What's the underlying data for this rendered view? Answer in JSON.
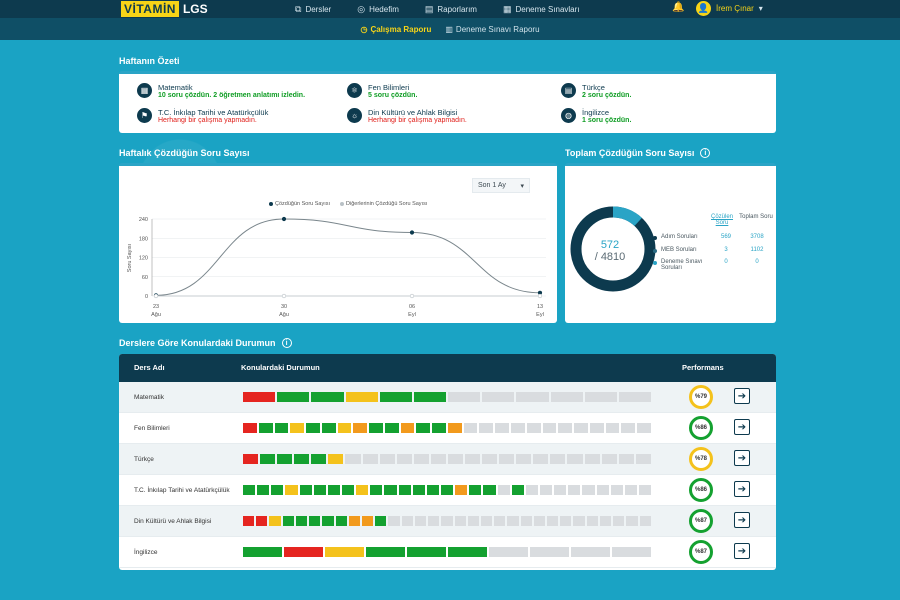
{
  "logo": {
    "main": "VİTAMİN",
    "suffix": "LGS"
  },
  "nav": [
    {
      "label": "Dersler",
      "icon": "layers-icon",
      "glyph": "⧉"
    },
    {
      "label": "Hedefim",
      "icon": "target-icon",
      "glyph": "◎"
    },
    {
      "label": "Raporlarım",
      "icon": "report-icon",
      "glyph": "▤"
    },
    {
      "label": "Deneme Sınavları",
      "icon": "exam-icon",
      "glyph": "▦"
    }
  ],
  "user": {
    "name": "İrem Çınar"
  },
  "subnav": [
    {
      "label": "Çalışma Raporu",
      "active": true
    },
    {
      "label": "Deneme Sınavı Raporu",
      "active": false
    }
  ],
  "summary": {
    "title": "Haftanın Özeti",
    "items": [
      {
        "name": "Matematik",
        "status": "10 soru çözdün. 2 öğretmen anlatımı izledin.",
        "ok": true,
        "glyph": "▦"
      },
      {
        "name": "T.C. İnkılap Tarihi ve Atatürkçülük",
        "status": "Herhangi bir çalışma yapmadın.",
        "ok": false,
        "glyph": "⚑"
      },
      {
        "name": "Fen Bilimleri",
        "status": "5 soru çözdün.",
        "ok": true,
        "glyph": "⚛"
      },
      {
        "name": "Din Kültürü ve Ahlak Bilgisi",
        "status": "Herhangi bir çalışma yapmadın.",
        "ok": false,
        "glyph": "☼"
      },
      {
        "name": "Türkçe",
        "status": "2 soru çözdün.",
        "ok": true,
        "glyph": "▤"
      },
      {
        "name": "İngilizce",
        "status": "1 soru çözdün.",
        "ok": true,
        "glyph": "◍"
      }
    ]
  },
  "weekly": {
    "title": "Haftalık Çözdüğün Soru Sayısı",
    "range": "Son 1 Ay",
    "legend": [
      "Çözdüğün Soru Sayısı",
      "Diğerlerinin Çözdüğü Soru Sayısı"
    ]
  },
  "chart_data": {
    "type": "line",
    "categories": [
      "23 Ağu",
      "30 Ağu",
      "06 Eyl",
      "13 Eyl"
    ],
    "tick_labels_top": [
      "23",
      "30",
      "06",
      "13"
    ],
    "tick_labels_bottom": [
      "Ağu",
      "Ağu",
      "Eyl",
      "Eyl"
    ],
    "series": [
      {
        "name": "Çözdüğün Soru Sayısı",
        "values": [
          2,
          240,
          198,
          10
        ],
        "color": "#7a868c"
      },
      {
        "name": "Diğerlerinin Çözdüğü Soru Sayısı",
        "values": [
          0,
          0,
          0,
          0
        ],
        "color": "#b9c1c6"
      }
    ],
    "ylabel": "Soru Sayısı",
    "ylim": [
      0,
      240
    ],
    "yticks": [
      0,
      60,
      120,
      180,
      240
    ],
    "grid": true,
    "legend": "top"
  },
  "total": {
    "title": "Toplam Çözdüğün Soru Sayısı",
    "solved": "572",
    "of": "/ 4810",
    "solved_fraction": 0.119,
    "col1": "Çözülen Soru",
    "col2": "Toplam Soru",
    "rows": [
      {
        "label": "Adım Soruları",
        "solved": "569",
        "total": "3708",
        "color": "#0d3a4e"
      },
      {
        "label": "MEB Soruları",
        "solved": "3",
        "total": "1102",
        "color": "#2a6b84"
      },
      {
        "label": "Deneme Sınavı Soruları",
        "solved": "0",
        "total": "0",
        "color": "#2aa4c6"
      }
    ]
  },
  "courses": {
    "title": "Derslere Göre Konulardaki Durumun",
    "col_name": "Ders Adı",
    "col_topics": "Konulardaki Durumun",
    "col_perf": "Performans",
    "colors": {
      "r": "#e52520",
      "g": "#14a130",
      "y": "#f4c21c",
      "o": "#f29a1d",
      "n": "#d9dcdf"
    },
    "rows": [
      {
        "name": "Matematik",
        "segments": "rggygg",
        "pad": "nnnnnn",
        "perf": "%79",
        "ring": "#f4c21c"
      },
      {
        "name": "Fen Bilimleri",
        "segments": "rggyggyoggoggo",
        "pad": "nnnnnnnnnnnn",
        "perf": "%86",
        "ring": "#14a130"
      },
      {
        "name": "Türkçe",
        "segments": "rggggy",
        "pad": "nnnnnnnnnnnnnnnnnn",
        "perf": "%78",
        "ring": "#f4c21c"
      },
      {
        "name": "T.C. İnkılap Tarihi ve Atatürkçülük",
        "segments": "gggyggggyggggggoggng",
        "pad": "nnnnnnnnn",
        "perf": "%86",
        "ring": "#14a130"
      },
      {
        "name": "Din Kültürü ve Ahlak Bilgisi",
        "segments": "rrygggggoog",
        "pad": "nnnnnnnnnnnnnnnnnnnn",
        "perf": "%87",
        "ring": "#14a130"
      },
      {
        "name": "İngilizce",
        "segments": "gryggg",
        "pad": "nnnn",
        "perf": "%87",
        "ring": "#14a130"
      }
    ]
  }
}
